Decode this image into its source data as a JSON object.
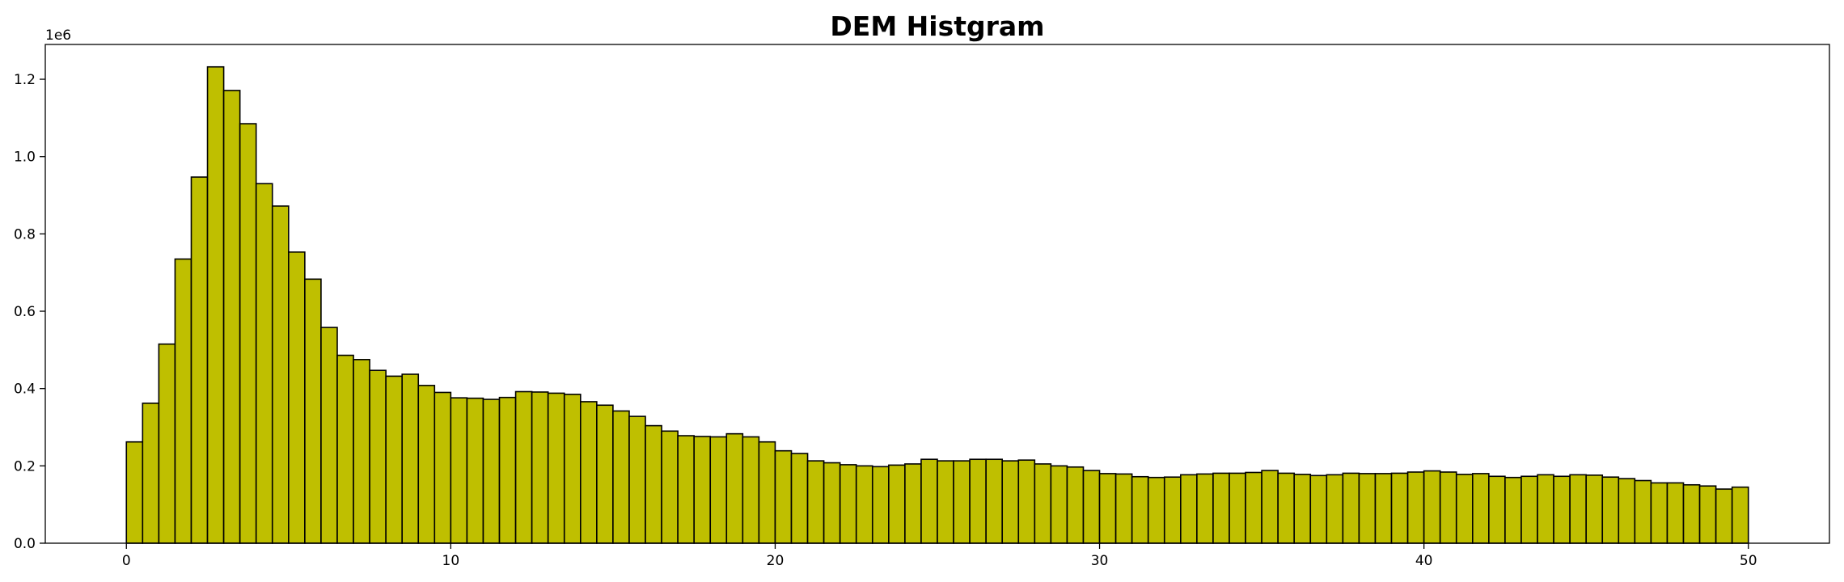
{
  "chart_data": {
    "type": "bar",
    "title": "DEM Histgram",
    "xlabel": "",
    "ylabel": "",
    "y_offset_label": "1e6",
    "bar_color": "#bfbf00",
    "edge_color": "#000000",
    "bin_start": 0,
    "bin_width": 0.5,
    "xlim": [
      -2.5,
      52.5
    ],
    "ylim": [
      0,
      1.29
    ],
    "x_ticks": [
      {
        "value": 0,
        "label": "0"
      },
      {
        "value": 10,
        "label": "10"
      },
      {
        "value": 20,
        "label": "20"
      },
      {
        "value": 30,
        "label": "30"
      },
      {
        "value": 40,
        "label": "40"
      },
      {
        "value": 50,
        "label": "50"
      }
    ],
    "y_ticks": [
      {
        "value": 0.0,
        "label": "0.0"
      },
      {
        "value": 0.2,
        "label": "0.2"
      },
      {
        "value": 0.4,
        "label": "0.4"
      },
      {
        "value": 0.6,
        "label": "0.6"
      },
      {
        "value": 0.8,
        "label": "0.8"
      },
      {
        "value": 1.0,
        "label": "1.0"
      },
      {
        "value": 1.2,
        "label": "1.2"
      }
    ],
    "values": [
      0.262,
      0.362,
      0.515,
      0.735,
      0.947,
      1.232,
      1.171,
      1.085,
      0.93,
      0.872,
      0.753,
      0.683,
      0.558,
      0.486,
      0.475,
      0.447,
      0.432,
      0.437,
      0.408,
      0.39,
      0.376,
      0.375,
      0.372,
      0.377,
      0.392,
      0.391,
      0.388,
      0.385,
      0.366,
      0.357,
      0.342,
      0.328,
      0.304,
      0.29,
      0.278,
      0.276,
      0.275,
      0.283,
      0.275,
      0.262,
      0.239,
      0.232,
      0.213,
      0.208,
      0.203,
      0.2,
      0.198,
      0.202,
      0.205,
      0.217,
      0.213,
      0.213,
      0.217,
      0.217,
      0.213,
      0.215,
      0.205,
      0.2,
      0.197,
      0.188,
      0.18,
      0.179,
      0.172,
      0.17,
      0.171,
      0.177,
      0.179,
      0.181,
      0.181,
      0.183,
      0.188,
      0.181,
      0.178,
      0.175,
      0.177,
      0.181,
      0.18,
      0.18,
      0.181,
      0.184,
      0.187,
      0.184,
      0.178,
      0.18,
      0.173,
      0.17,
      0.173,
      0.177,
      0.173,
      0.177,
      0.176,
      0.171,
      0.167,
      0.162,
      0.156,
      0.156,
      0.151,
      0.148,
      0.14,
      0.145
    ]
  }
}
